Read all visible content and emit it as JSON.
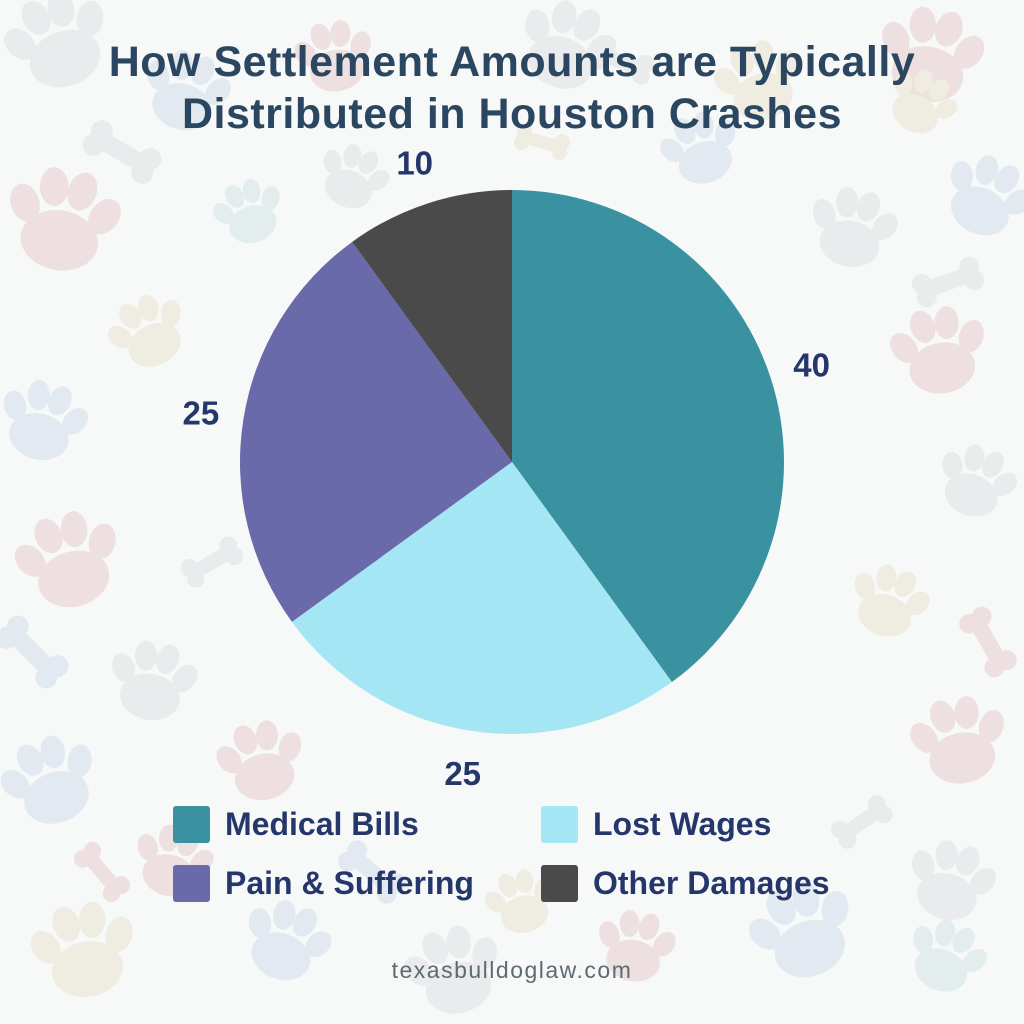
{
  "title": {
    "lines": [
      "How Settlement Amounts are Typically",
      "Distributed in Houston Crashes"
    ]
  },
  "footer": {
    "website": "texasbulldoglaw.com"
  },
  "chart_data": {
    "type": "pie",
    "title": "How Settlement Amounts are Typically Distributed in Houston Crashes",
    "categories": [
      "Medical Bills",
      "Lost Wages",
      "Pain & Suffering",
      "Other Damages"
    ],
    "values": [
      40,
      25,
      25,
      10
    ],
    "data_labels": [
      "40",
      "25",
      "25",
      "10"
    ],
    "colors": [
      "#3a92a1",
      "#a4e6f3",
      "#6a69a9",
      "#4a4a4a"
    ],
    "start_angle_deg": 0,
    "direction": "clockwise",
    "legend_position": "bottom",
    "label_color": "#25366b"
  }
}
